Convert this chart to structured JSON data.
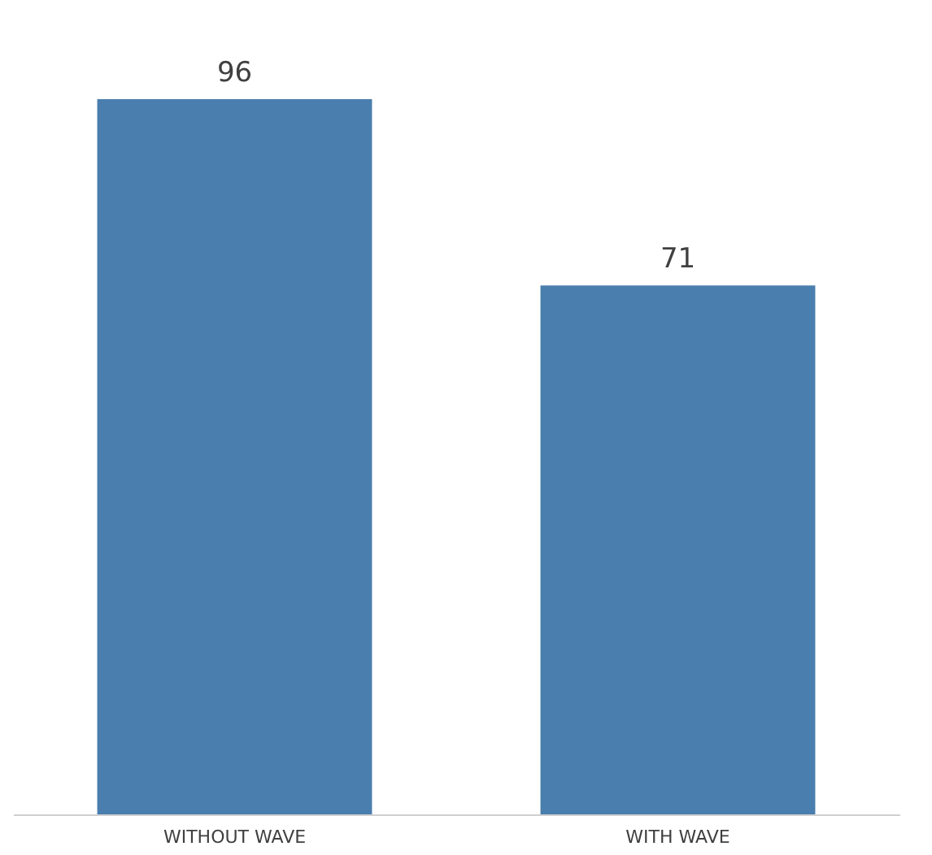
{
  "chart_data": {
    "type": "bar",
    "categories": [
      "WITHOUT WAVE",
      "WITH WAVE"
    ],
    "values": [
      96,
      71
    ],
    "color": "#4a7eae",
    "data_labels": true
  }
}
